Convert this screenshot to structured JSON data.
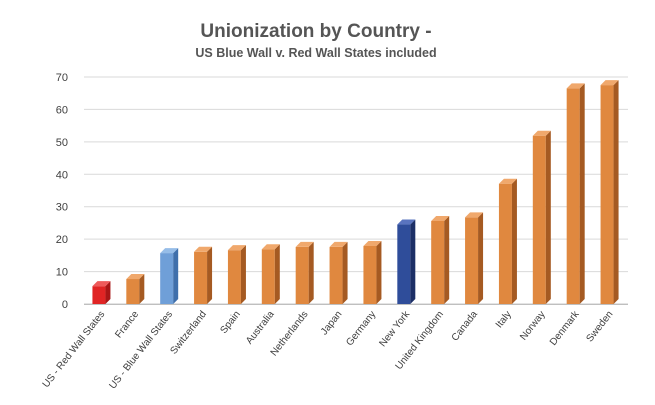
{
  "chart_data": {
    "type": "bar",
    "title": "Unionization by Country -",
    "subtitle": "US Blue Wall v. Red Wall States included",
    "xlabel": "",
    "ylabel": "",
    "ylim": [
      0,
      70
    ],
    "yticks": [
      0,
      10,
      20,
      30,
      40,
      50,
      60,
      70
    ],
    "grid": true,
    "legend": "none",
    "categories": [
      "US - Red Wall States",
      "France",
      "US - Blue Wall States",
      "Switzerland",
      "Spain",
      "Australia",
      "Netherlands",
      "Japan",
      "Germany",
      "New York",
      "United Kingdom",
      "Canada",
      "Italy",
      "Norway",
      "Denmark",
      "Sweden"
    ],
    "values": [
      5.5,
      7.7,
      15.7,
      16.1,
      16.6,
      16.9,
      17.6,
      17.6,
      17.9,
      24.5,
      25.6,
      26.7,
      37.1,
      51.9,
      66.5,
      67.5
    ],
    "colors": [
      "#e02424",
      "#e0883f",
      "#6f9fd8",
      "#e0883f",
      "#e0883f",
      "#e0883f",
      "#e0883f",
      "#e0883f",
      "#e0883f",
      "#2f4d9a",
      "#e0883f",
      "#e0883f",
      "#e0883f",
      "#e0883f",
      "#e0883f",
      "#e0883f"
    ],
    "side_colors": [
      "#a81616",
      "#a55a22",
      "#3f6fab",
      "#a55a22",
      "#a55a22",
      "#a55a22",
      "#a55a22",
      "#a55a22",
      "#a55a22",
      "#1c2f66",
      "#a55a22",
      "#a55a22",
      "#a55a22",
      "#a55a22",
      "#a55a22",
      "#a55a22"
    ],
    "top_colors": [
      "#ee5a5a",
      "#f0a86c",
      "#96bde8",
      "#f0a86c",
      "#f0a86c",
      "#f0a86c",
      "#f0a86c",
      "#f0a86c",
      "#f0a86c",
      "#5a74bf",
      "#f0a86c",
      "#f0a86c",
      "#f0a86c",
      "#f0a86c",
      "#f0a86c",
      "#f0a86c"
    ]
  }
}
